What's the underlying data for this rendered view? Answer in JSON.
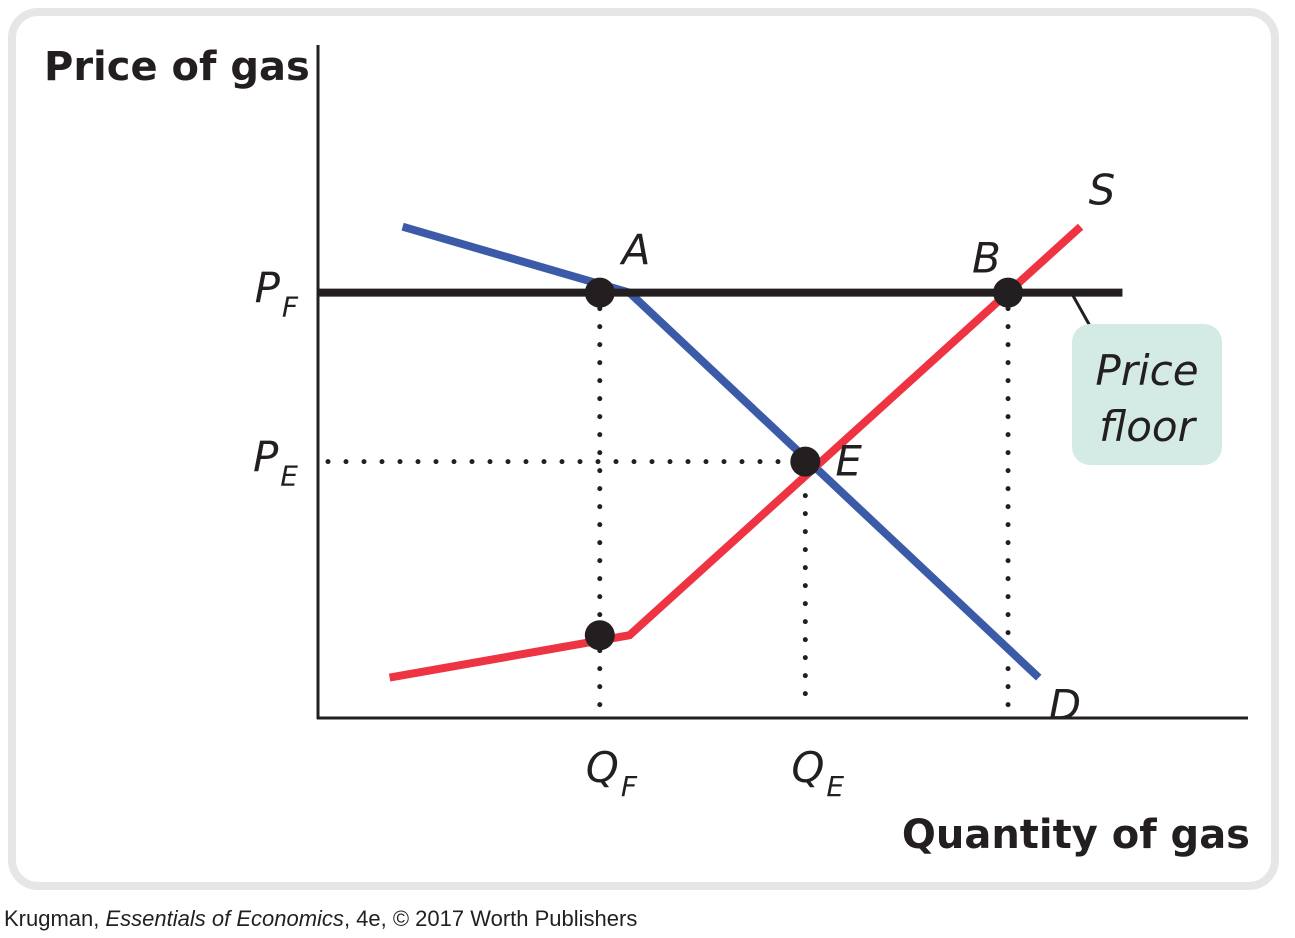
{
  "chart_data": {
    "type": "line",
    "title": "",
    "xlabel": "Quantity of gas",
    "ylabel": "Price of gas",
    "xlim": [
      0,
      10
    ],
    "ylim": [
      0,
      10
    ],
    "grid": false,
    "series": [
      {
        "name": "D",
        "color": "#3b5ba8",
        "x": [
          0.91,
          3.35,
          7.75
        ],
        "y": [
          7.3,
          6.32,
          0.6
        ]
      },
      {
        "name": "S",
        "color": "#ee3342",
        "x": [
          0.77,
          3.35,
          8.2
        ],
        "y": [
          0.6,
          1.23,
          7.3
        ]
      }
    ],
    "price_floor": {
      "label_lines": [
        "Price",
        "floor"
      ],
      "y": 6.32,
      "x_start": 0,
      "x_end": 8.65,
      "color": "#231f20",
      "callout_fill": "#d3ebe4"
    },
    "points": [
      {
        "label": "A",
        "x": 3.03,
        "y": 6.32
      },
      {
        "label": "B",
        "x": 7.42,
        "y": 6.32
      },
      {
        "label": "E",
        "x": 5.24,
        "y": 3.81
      },
      {
        "label": "",
        "x": 3.03,
        "y": 1.23
      }
    ],
    "y_ticks": [
      {
        "main": "P",
        "sub": "F",
        "value": 6.32
      },
      {
        "main": "P",
        "sub": "E",
        "value": 3.81
      }
    ],
    "x_ticks": [
      {
        "main": "Q",
        "sub": "F",
        "value": 3.03
      },
      {
        "main": "Q",
        "sub": "E",
        "value": 5.24
      }
    ]
  },
  "credit": {
    "author": "Krugman, ",
    "book": "Essentials of Economics",
    "rest": ", 4e, © 2017 Worth Publishers"
  }
}
